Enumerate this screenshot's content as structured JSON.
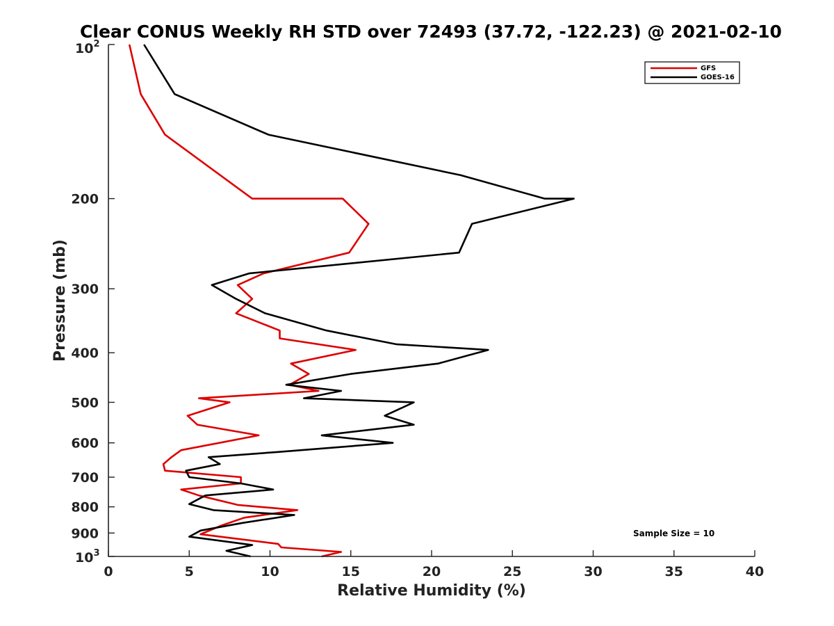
{
  "chart_data": {
    "type": "line",
    "title": "Clear CONUS Weekly RH STD over 72493 (37.72, -122.23) @ 2021-02-10",
    "xlabel": "Relative Humidity (%)",
    "ylabel": "Pressure (mb)",
    "xlim": [
      0,
      40
    ],
    "ylim": [
      100,
      1000
    ],
    "yscale": "log",
    "y_reversed": true,
    "grid": false,
    "legend_position": "top-right",
    "x_ticks": [
      "0",
      "5",
      "10",
      "15",
      "20",
      "25",
      "30",
      "35",
      "40"
    ],
    "x_tick_values": [
      0,
      5,
      10,
      15,
      20,
      25,
      30,
      35,
      40
    ],
    "y_ticks": [
      {
        "value": 200,
        "label": "200"
      },
      {
        "value": 300,
        "label": "300"
      },
      {
        "value": 400,
        "label": "400"
      },
      {
        "value": 500,
        "label": "500"
      },
      {
        "value": 600,
        "label": "600"
      },
      {
        "value": 700,
        "label": "700"
      },
      {
        "value": 800,
        "label": "800"
      },
      {
        "value": 900,
        "label": "900"
      }
    ],
    "y_top_label": {
      "value": 100,
      "base": "10",
      "exp": "2"
    },
    "y_bottom_label": {
      "value": 1000,
      "base": "10",
      "exp": "3"
    },
    "annotation": "Sample Size = 10",
    "series": [
      {
        "name": "GFS",
        "color": "#dd0000",
        "points": [
          [
            1.3,
            100
          ],
          [
            2.0,
            125
          ],
          [
            3.5,
            150
          ],
          [
            8.9,
            200
          ],
          [
            14.5,
            200
          ],
          [
            16.1,
            224
          ],
          [
            14.9,
            255
          ],
          [
            9.6,
            280
          ],
          [
            8.0,
            295
          ],
          [
            8.9,
            314
          ],
          [
            7.9,
            335
          ],
          [
            10.6,
            362
          ],
          [
            10.6,
            375
          ],
          [
            15.3,
            395
          ],
          [
            11.3,
            420
          ],
          [
            12.4,
            440
          ],
          [
            11.2,
            462
          ],
          [
            13.0,
            475
          ],
          [
            5.6,
            491
          ],
          [
            7.5,
            500
          ],
          [
            4.9,
            531
          ],
          [
            5.5,
            553
          ],
          [
            9.3,
            580
          ],
          [
            4.5,
            620
          ],
          [
            3.9,
            640
          ],
          [
            3.4,
            660
          ],
          [
            3.5,
            680
          ],
          [
            8.2,
            700
          ],
          [
            8.2,
            720
          ],
          [
            4.5,
            740
          ],
          [
            5.6,
            760
          ],
          [
            8.0,
            793
          ],
          [
            11.7,
            812
          ],
          [
            8.4,
            840
          ],
          [
            7.0,
            870
          ],
          [
            5.7,
            905
          ],
          [
            10.5,
            945
          ],
          [
            10.7,
            960
          ],
          [
            14.4,
            980
          ],
          [
            13.2,
            1000
          ]
        ]
      },
      {
        "name": "GOES-16",
        "color": "#000000",
        "points": [
          [
            2.2,
            100
          ],
          [
            4.1,
            125
          ],
          [
            9.9,
            150
          ],
          [
            21.8,
            180
          ],
          [
            27.0,
            200
          ],
          [
            28.8,
            200
          ],
          [
            22.5,
            224
          ],
          [
            21.7,
            255
          ],
          [
            8.7,
            280
          ],
          [
            6.4,
            295
          ],
          [
            7.9,
            314
          ],
          [
            9.7,
            335
          ],
          [
            13.5,
            362
          ],
          [
            17.8,
            385
          ],
          [
            23.5,
            395
          ],
          [
            20.4,
            420
          ],
          [
            15.0,
            440
          ],
          [
            11.0,
            462
          ],
          [
            14.4,
            475
          ],
          [
            12.1,
            491
          ],
          [
            18.9,
            500
          ],
          [
            17.1,
            531
          ],
          [
            18.9,
            553
          ],
          [
            13.2,
            580
          ],
          [
            17.6,
            600
          ],
          [
            10.5,
            625
          ],
          [
            6.2,
            640
          ],
          [
            6.9,
            660
          ],
          [
            4.8,
            680
          ],
          [
            5.0,
            700
          ],
          [
            8.2,
            720
          ],
          [
            10.2,
            740
          ],
          [
            6.0,
            760
          ],
          [
            5.0,
            790
          ],
          [
            6.5,
            812
          ],
          [
            11.5,
            830
          ],
          [
            8.3,
            860
          ],
          [
            5.7,
            890
          ],
          [
            5.0,
            915
          ],
          [
            8.9,
            950
          ],
          [
            7.3,
            975
          ],
          [
            8.8,
            1000
          ]
        ]
      }
    ]
  }
}
